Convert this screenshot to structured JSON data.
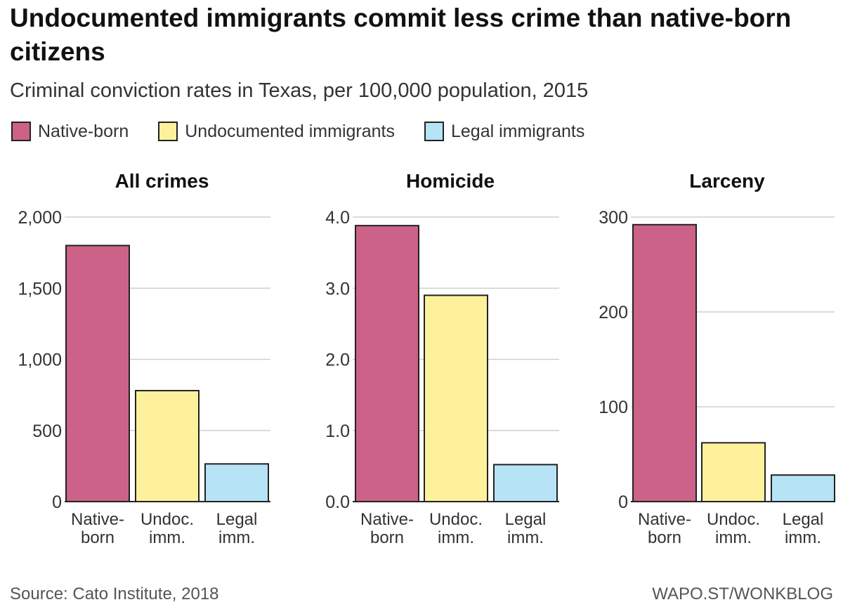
{
  "title": "Undocumented immigrants commit less crime than native-born citizens",
  "subtitle": "Criminal conviction rates in Texas, per 100,000 population, 2015",
  "legend": [
    {
      "label": "Native-born",
      "color": "#cc6288"
    },
    {
      "label": "Undocumented immigrants",
      "color": "#fdf29b"
    },
    {
      "label": "Legal immigrants",
      "color": "#b6e3f5"
    }
  ],
  "chart_data": [
    {
      "type": "bar",
      "title": "All crimes",
      "categories": [
        [
          "Native-",
          "born"
        ],
        [
          "Undoc.",
          "imm."
        ],
        [
          "Legal",
          "imm."
        ]
      ],
      "values": [
        1800,
        780,
        265
      ],
      "yticks": [
        0,
        500,
        1000,
        1500,
        2000
      ],
      "ytick_labels": [
        "0",
        "500",
        "1,000",
        "1,500",
        "2,000"
      ],
      "ylim": [
        0,
        2000
      ],
      "xlabel": "",
      "ylabel": ""
    },
    {
      "type": "bar",
      "title": "Homicide",
      "categories": [
        [
          "Native-",
          "born"
        ],
        [
          "Undoc.",
          "imm."
        ],
        [
          "Legal",
          "imm."
        ]
      ],
      "values": [
        3.88,
        2.9,
        0.52
      ],
      "yticks": [
        0,
        1,
        2,
        3,
        4
      ],
      "ytick_labels": [
        "0.0",
        "1.0",
        "2.0",
        "3.0",
        "4.0"
      ],
      "ylim": [
        0,
        4
      ],
      "xlabel": "",
      "ylabel": ""
    },
    {
      "type": "bar",
      "title": "Larceny",
      "categories": [
        [
          "Native-",
          "born"
        ],
        [
          "Undoc.",
          "imm."
        ],
        [
          "Legal",
          "imm."
        ]
      ],
      "values": [
        292,
        62,
        28
      ],
      "yticks": [
        0,
        100,
        200,
        300
      ],
      "ytick_labels": [
        "0",
        "100",
        "200",
        "300"
      ],
      "ylim": [
        0,
        300
      ],
      "xlabel": "",
      "ylabel": ""
    }
  ],
  "source": "Source: Cato Institute, 2018",
  "credit": "WAPO.ST/WONKBLOG"
}
